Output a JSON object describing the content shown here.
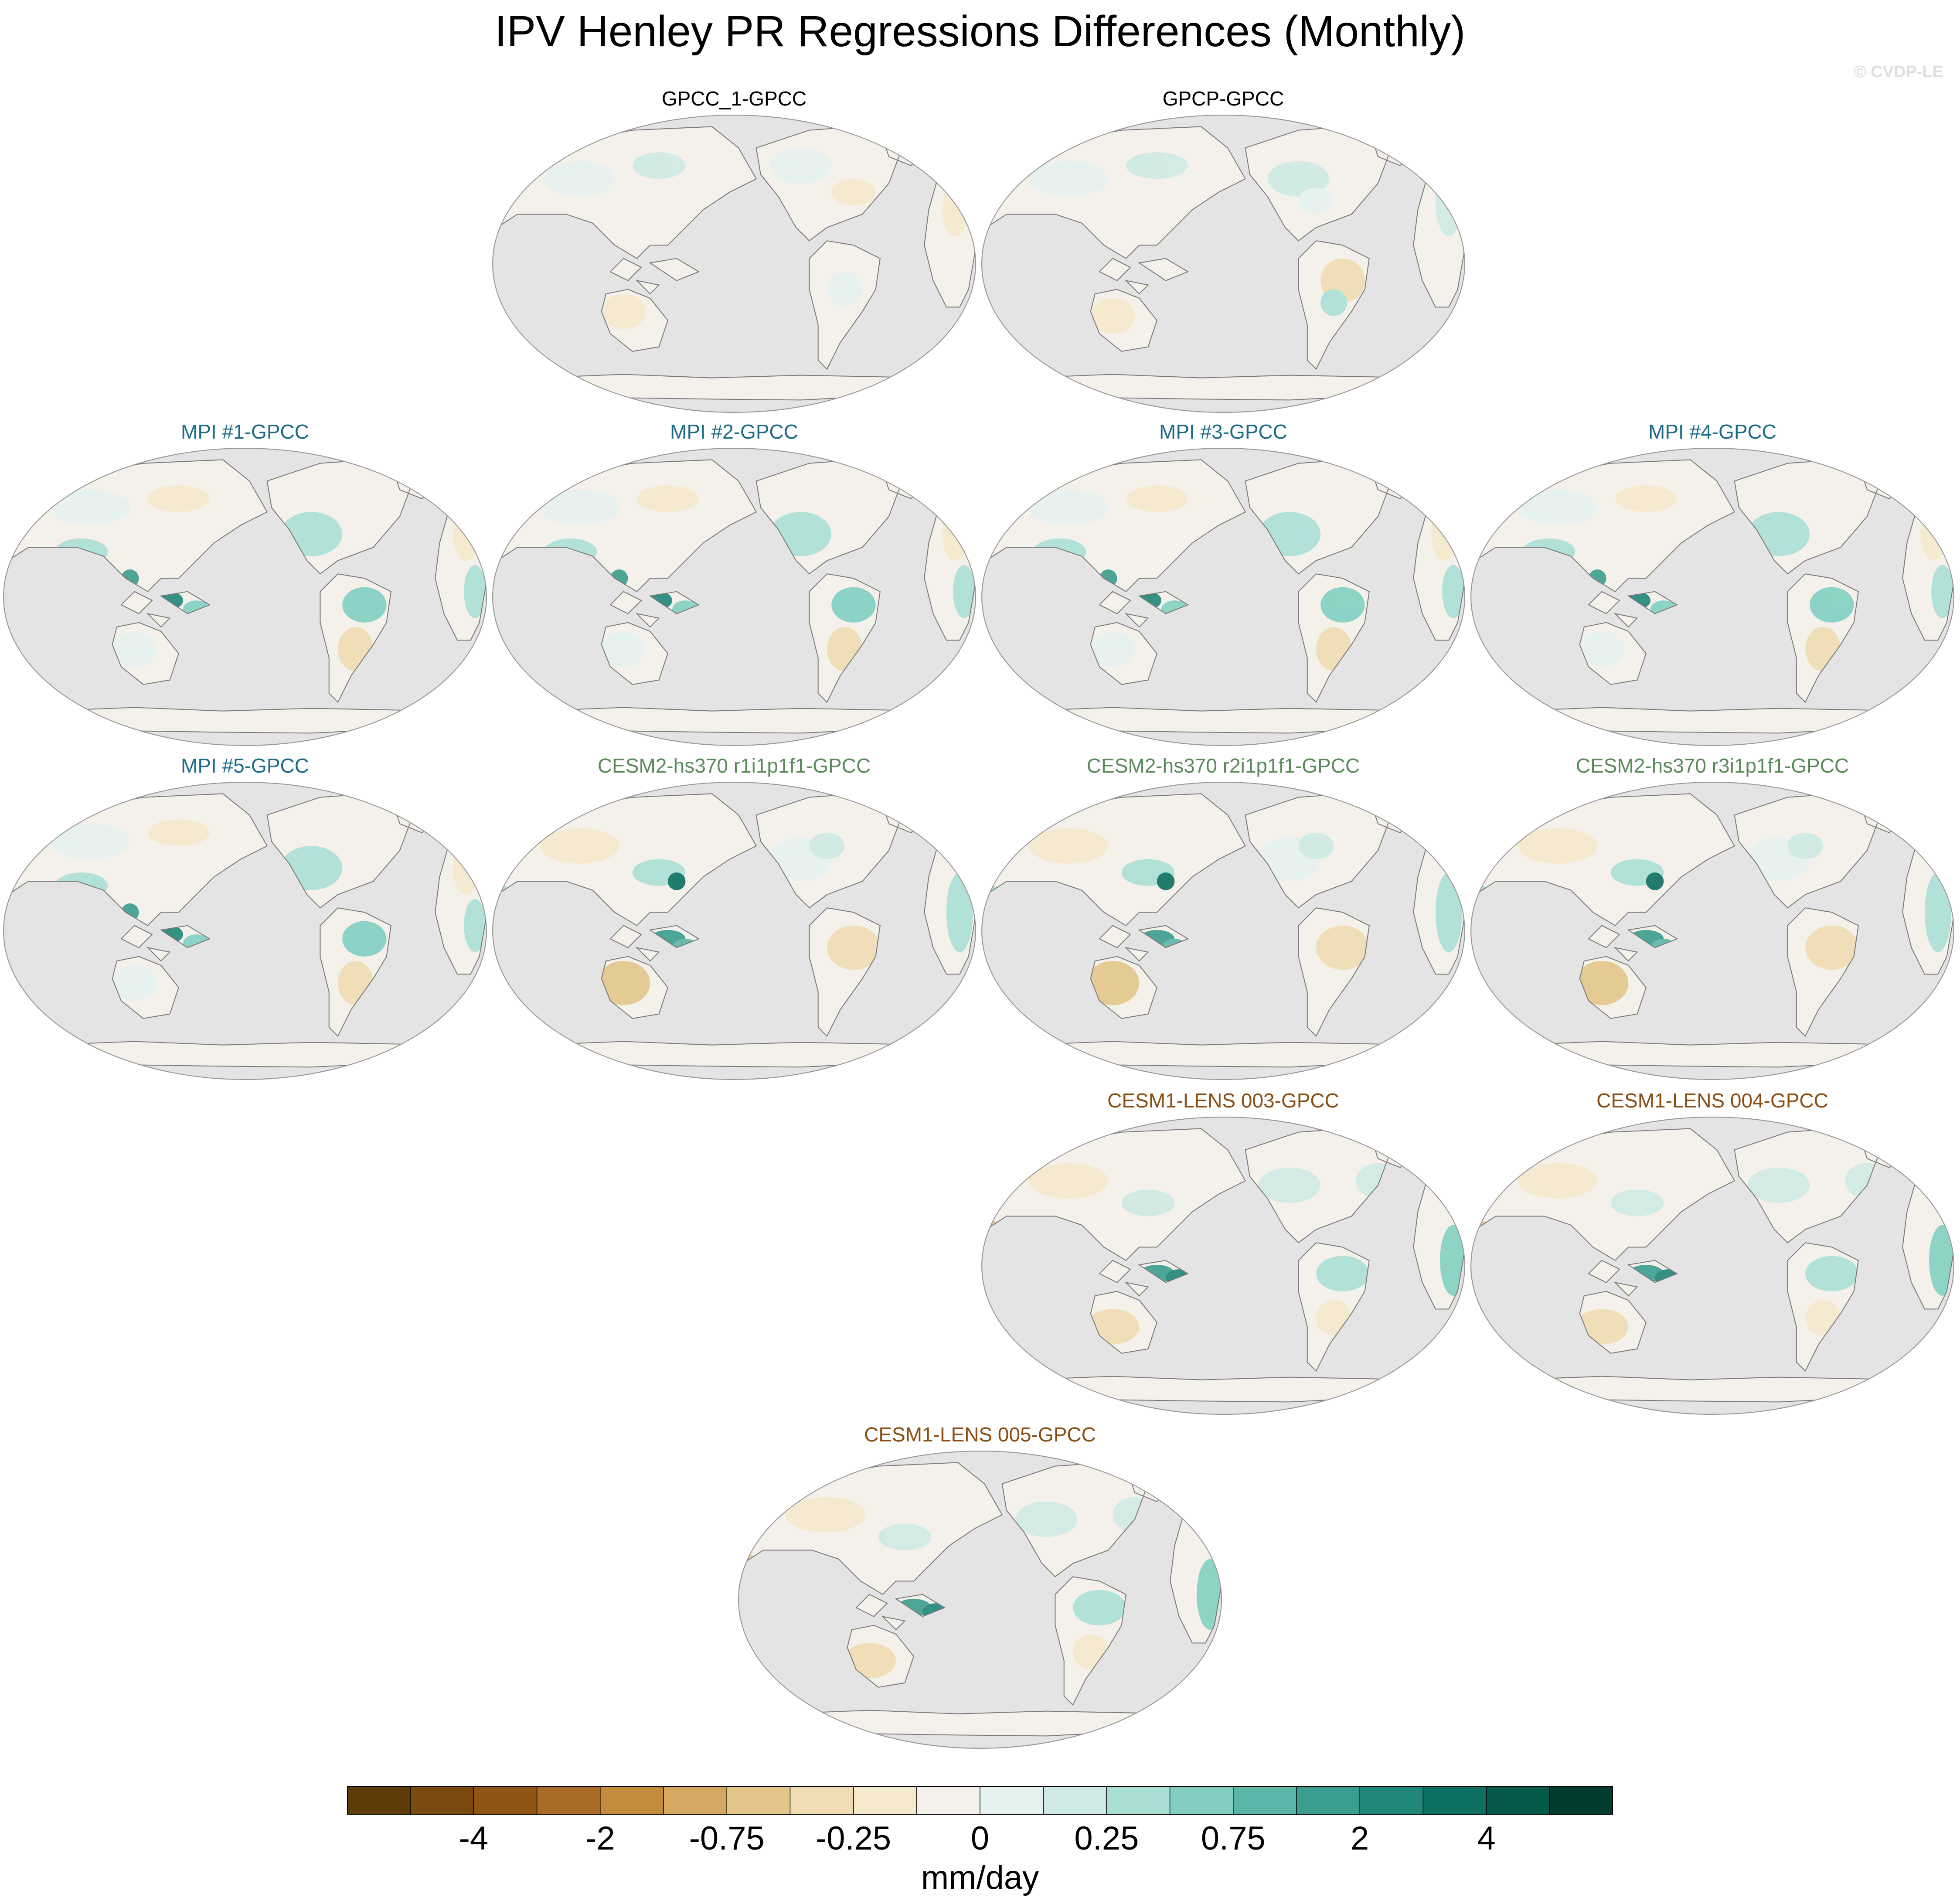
{
  "title": "IPV Henley PR Regressions Differences (Monthly)",
  "credit": "© CVDP-LE",
  "panels": [
    {
      "title": "GPCC_1-GPCC",
      "group": "obs",
      "pattern": "obs1"
    },
    {
      "title": "GPCP-GPCC",
      "group": "obs",
      "pattern": "obs2"
    },
    {
      "title": "MPI #1-GPCC",
      "group": "mpi",
      "pattern": "mpi"
    },
    {
      "title": "MPI #2-GPCC",
      "group": "mpi",
      "pattern": "mpi"
    },
    {
      "title": "MPI #3-GPCC",
      "group": "mpi",
      "pattern": "mpi"
    },
    {
      "title": "MPI #4-GPCC",
      "group": "mpi",
      "pattern": "mpi"
    },
    {
      "title": "MPI #5-GPCC",
      "group": "mpi",
      "pattern": "mpi"
    },
    {
      "title": "CESM2-hs370 r1i1p1f1-GPCC",
      "group": "cesm2",
      "pattern": "cesm2"
    },
    {
      "title": "CESM2-hs370 r2i1p1f1-GPCC",
      "group": "cesm2",
      "pattern": "cesm2"
    },
    {
      "title": "CESM2-hs370 r3i1p1f1-GPCC",
      "group": "cesm2",
      "pattern": "cesm2"
    },
    {
      "title": "CESM1-LENS 003-GPCC",
      "group": "cesm1",
      "pattern": "cesm1"
    },
    {
      "title": "CESM1-LENS 004-GPCC",
      "group": "cesm1",
      "pattern": "cesm1"
    },
    {
      "title": "CESM1-LENS 005-GPCC",
      "group": "cesm1",
      "pattern": "cesm1"
    }
  ],
  "group_colors": {
    "obs": "#000000",
    "mpi": "#1b6a87",
    "cesm2": "#5a8a5a",
    "cesm1": "#8a4d12"
  },
  "map_colors": {
    "ocean": "#e4e4e4",
    "land": "#f4f1ea",
    "coast": "#7a7a7a"
  },
  "colorbar": {
    "colors": [
      "#5e3c0a",
      "#7a4a0e",
      "#8e5514",
      "#a96b26",
      "#c28c3c",
      "#d4a860",
      "#e3c68a",
      "#efdcb2",
      "#f5e9cd",
      "#f4f1ea",
      "#e6f2ef",
      "#cfe9e4",
      "#aadfd6",
      "#82cfc2",
      "#5ab6a7",
      "#3a9d8e",
      "#1f8678",
      "#0c6f60",
      "#055a4c",
      "#023b30"
    ],
    "labels": [
      "-4",
      "-2",
      "-0.75",
      "-0.25",
      "0",
      "0.25",
      "0.75",
      "2",
      "4"
    ],
    "units": "mm/day"
  }
}
